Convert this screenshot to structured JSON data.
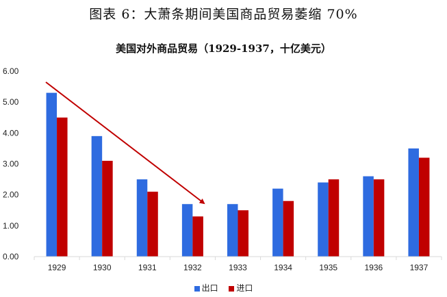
{
  "figure_title": "图表 6：大萧条期间美国商品贸易萎缩 70%",
  "colors": {
    "exports": "#2E6BE0",
    "imports": "#C00000",
    "arrow": "#C00000",
    "axis": "#D9D9D9"
  },
  "chart_data": {
    "type": "bar",
    "title": "美国对外商品贸易（1929-1937，十亿美元）",
    "xlabel": "",
    "ylabel": "",
    "ylim": [
      0,
      6
    ],
    "yticks": [
      "0.00",
      "1.00",
      "2.00",
      "3.00",
      "4.00",
      "5.00",
      "6.00"
    ],
    "categories": [
      "1929",
      "1930",
      "1931",
      "1932",
      "1933",
      "1934",
      "1935",
      "1936",
      "1937"
    ],
    "series": [
      {
        "name": "出口",
        "values": [
          5.3,
          3.9,
          2.5,
          1.7,
          1.7,
          2.2,
          2.4,
          2.6,
          3.5
        ]
      },
      {
        "name": "进口",
        "values": [
          4.5,
          3.1,
          2.1,
          1.3,
          1.5,
          1.8,
          2.5,
          2.5,
          3.2
        ]
      }
    ],
    "grid": false,
    "legend_position": "bottom",
    "annotations": [
      {
        "type": "arrow",
        "from": "1929 (~5.7)",
        "to": "1932 (~1.7)",
        "color": "#C00000"
      }
    ]
  }
}
